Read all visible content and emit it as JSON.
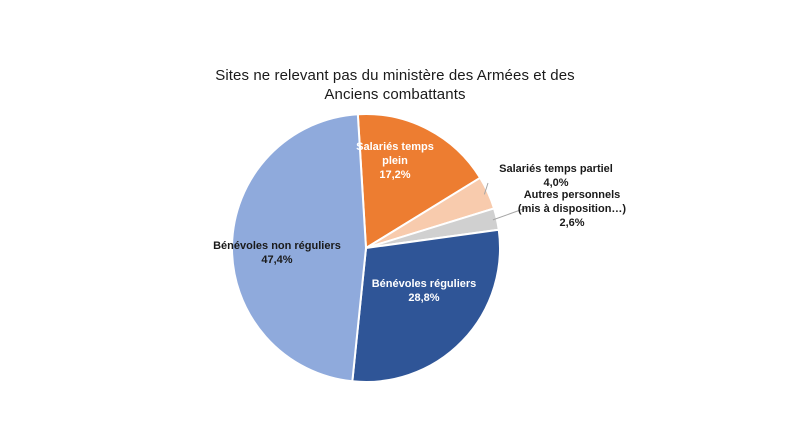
{
  "chart_data": {
    "type": "pie",
    "title_lines": [
      "Sites ne relevant pas du ministère des Armées et des",
      "Anciens combattants"
    ],
    "slices": [
      {
        "name": "Salariés temps plein",
        "value": 17.2,
        "value_label": "17,2%",
        "label_lines": [
          "Salariés temps",
          "plein"
        ],
        "color": "#ED7D31",
        "text_color": "#ffffff"
      },
      {
        "name": "Salariés temps partiel",
        "value": 4.0,
        "value_label": "4,0%",
        "label_lines": [
          "Salariés temps partiel"
        ],
        "color": "#F8CBAD",
        "text_color": "#1a1a1a"
      },
      {
        "name": "Autres personnels (mis à disposition…)",
        "value": 2.6,
        "value_label": "2,6%",
        "label_lines": [
          "Autres personnels",
          "(mis à disposition…)"
        ],
        "color": "#D0D0D0",
        "text_color": "#1a1a1a"
      },
      {
        "name": "Bénévoles réguliers",
        "value": 28.8,
        "value_label": "28,8%",
        "label_lines": [
          "Bénévoles réguliers"
        ],
        "color": "#2F5597",
        "text_color": "#ffffff"
      },
      {
        "name": "Bénévoles non réguliers",
        "value": 47.4,
        "value_label": "47,4%",
        "label_lines": [
          "Bénévoles non réguliers"
        ],
        "color": "#8FAADC",
        "text_color": "#1a1a1a"
      }
    ]
  }
}
